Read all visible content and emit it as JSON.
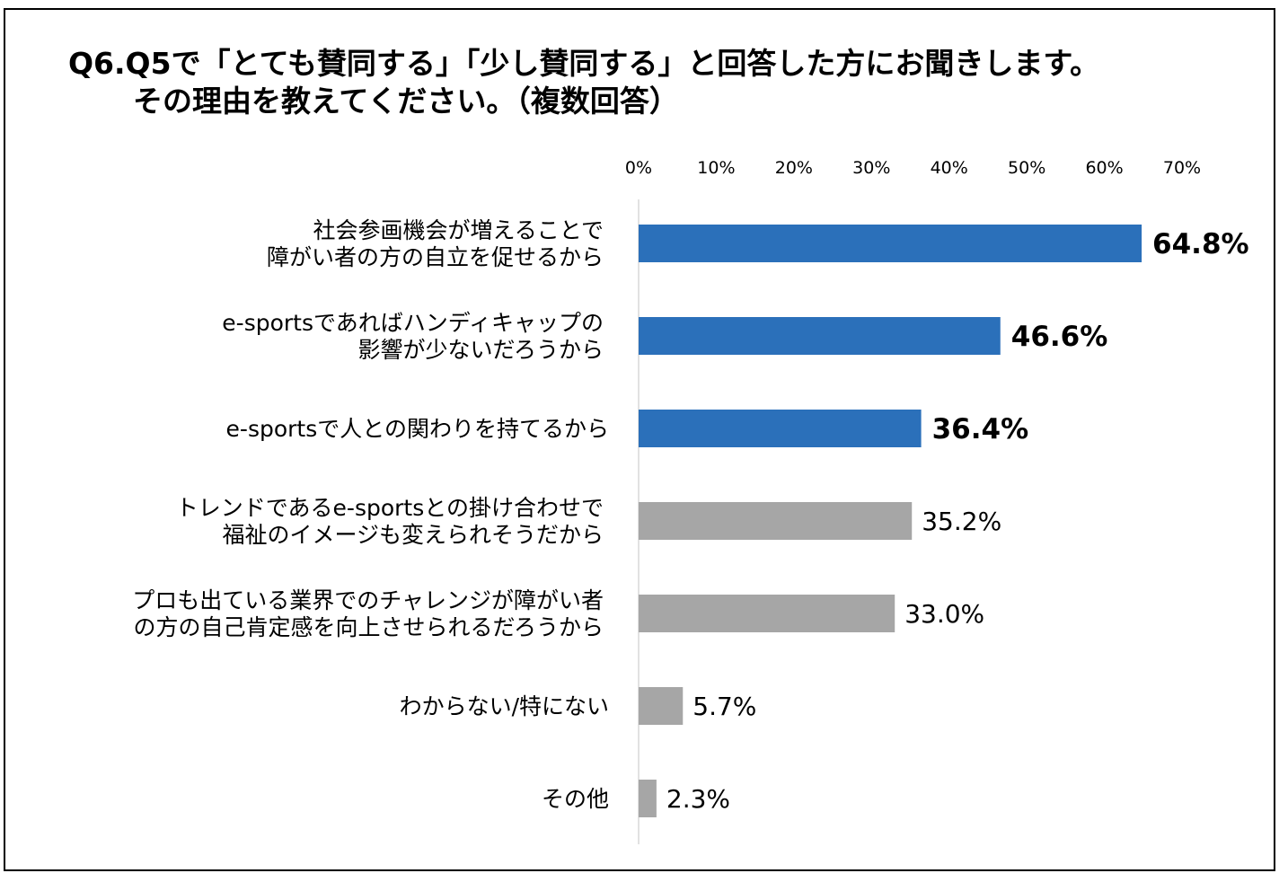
{
  "title": {
    "line1": "Q6.Q5で「とても賛同する」「少し賛同する」と回答した方にお聞きします。",
    "line2": "その理由を教えてください。（複数回答）"
  },
  "colors": {
    "highlight": "#2b70ba",
    "other": "#a6a6a6",
    "axis": "#d9d9d9",
    "frame": "#000000"
  },
  "chart_data": {
    "type": "bar",
    "orientation": "horizontal",
    "title": "Q6.Q5で「とても賛同する」「少し賛同する」と回答した方にお聞きします。 その理由を教えてください。（複数回答）",
    "xlim": [
      0,
      70
    ],
    "ticks": [
      0,
      10,
      20,
      30,
      40,
      50,
      60,
      70
    ],
    "tick_labels": [
      "0%",
      "10%",
      "20%",
      "30%",
      "40%",
      "50%",
      "60%",
      "70%"
    ],
    "tick_position": "top",
    "categories": [
      [
        "社会参画機会が増えることで",
        "障がい者の方の自立を促せるから"
      ],
      [
        "e-sportsであればハンディキャップの",
        "影響が少ないだろうから"
      ],
      [
        "e-sportsで人との関わりを持てるから"
      ],
      [
        "トレンドであるe-sportsとの掛け合わせで",
        "福祉のイメージも変えられそうだから"
      ],
      [
        "プロも出ている業界でのチャレンジが障がい者",
        "の方の自己肯定感を向上させられるだろうから"
      ],
      [
        "わからない/特にない"
      ],
      [
        "その他"
      ]
    ],
    "values": [
      64.8,
      46.6,
      36.4,
      35.2,
      33.0,
      5.7,
      2.3
    ],
    "value_labels": [
      "64.8%",
      "46.6%",
      "36.4%",
      "35.2%",
      "33.0%",
      "5.7%",
      "2.3%"
    ],
    "highlighted": [
      true,
      true,
      true,
      false,
      false,
      false,
      false
    ],
    "legend": "none",
    "grid": false
  }
}
